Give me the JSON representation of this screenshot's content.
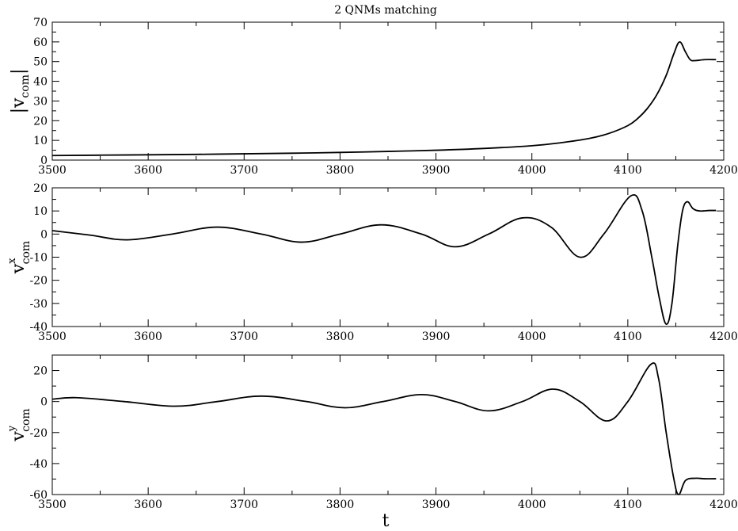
{
  "title": "2 QNMs matching",
  "xlabel": "t",
  "chart_data": [
    {
      "type": "line",
      "title": "2 QNMs matching",
      "ylabel_main": "|v",
      "ylabel_sub": "com",
      "ylabel_close": "|",
      "xlim": [
        3500,
        4200
      ],
      "ylim": [
        0,
        70
      ],
      "xticks": [
        3500,
        3600,
        3700,
        3800,
        3900,
        4000,
        4100,
        4200
      ],
      "yticks": [
        0,
        10,
        20,
        30,
        40,
        50,
        60,
        70
      ],
      "series": [
        {
          "x": [
            3500,
            3550,
            3600,
            3650,
            3700,
            3750,
            3800,
            3850,
            3900,
            3950,
            4000,
            4030,
            4060,
            4080,
            4100,
            4110,
            4120,
            4130,
            4140,
            4148,
            4154,
            4160,
            4165,
            4170,
            4180,
            4192
          ],
          "y": [
            2.3,
            2.5,
            2.7,
            2.9,
            3.2,
            3.5,
            3.9,
            4.4,
            5.0,
            5.9,
            7.3,
            8.8,
            11.0,
            13.5,
            17.5,
            21.0,
            26.0,
            33.0,
            43.0,
            54.0,
            60.0,
            55.0,
            51.0,
            50.5,
            51.0,
            51.0
          ]
        }
      ]
    },
    {
      "type": "line",
      "ylabel_main": "v",
      "ylabel_sup": "x",
      "ylabel_sub": "com",
      "xlim": [
        3500,
        4200
      ],
      "ylim": [
        -40,
        20
      ],
      "xticks": [
        3500,
        3600,
        3700,
        3800,
        3900,
        4000,
        4100,
        4200
      ],
      "yticks": [
        -40,
        -30,
        -20,
        -10,
        0,
        10,
        20
      ],
      "series": [
        {
          "x": [
            3500,
            3540,
            3578,
            3625,
            3672,
            3718,
            3760,
            3800,
            3843,
            3885,
            3920,
            3955,
            3990,
            4020,
            4050,
            4075,
            4103,
            4115,
            4125,
            4133,
            4140,
            4146,
            4152,
            4157,
            4162,
            4168,
            4175,
            4185,
            4192
          ],
          "y": [
            1.5,
            -0.5,
            -2.5,
            0.0,
            3.0,
            0.0,
            -3.5,
            0.0,
            4.0,
            0.0,
            -5.5,
            0.0,
            7.0,
            3.0,
            -10.0,
            0.0,
            16.5,
            10.0,
            -10.0,
            -28.0,
            -39.0,
            -30.0,
            -5.0,
            10.0,
            14.0,
            11.0,
            10.0,
            10.2,
            10.2
          ]
        }
      ]
    },
    {
      "type": "line",
      "ylabel_main": "v",
      "ylabel_sup": "y",
      "ylabel_sub": "com",
      "xlim": [
        3500,
        4200
      ],
      "ylim": [
        -60,
        30
      ],
      "xticks": [
        3500,
        3600,
        3700,
        3800,
        3900,
        4000,
        4100,
        4200
      ],
      "yticks": [
        -60,
        -40,
        -20,
        0,
        20
      ],
      "series": [
        {
          "x": [
            3500,
            3525,
            3575,
            3628,
            3672,
            3718,
            3765,
            3805,
            3845,
            3885,
            3920,
            3955,
            3990,
            4022,
            4050,
            4078,
            4100,
            4124,
            4132,
            4140,
            4148,
            4153,
            4160,
            4170,
            4180,
            4192
          ],
          "y": [
            1.5,
            2.5,
            0.0,
            -3.0,
            0.0,
            3.5,
            0.0,
            -4.0,
            0.0,
            4.5,
            0.0,
            -6.0,
            0.0,
            8.0,
            0.0,
            -12.5,
            0.0,
            24.0,
            15.0,
            -20.0,
            -50.0,
            -60.0,
            -51.0,
            -49.5,
            -49.8,
            -49.8
          ]
        }
      ]
    }
  ]
}
